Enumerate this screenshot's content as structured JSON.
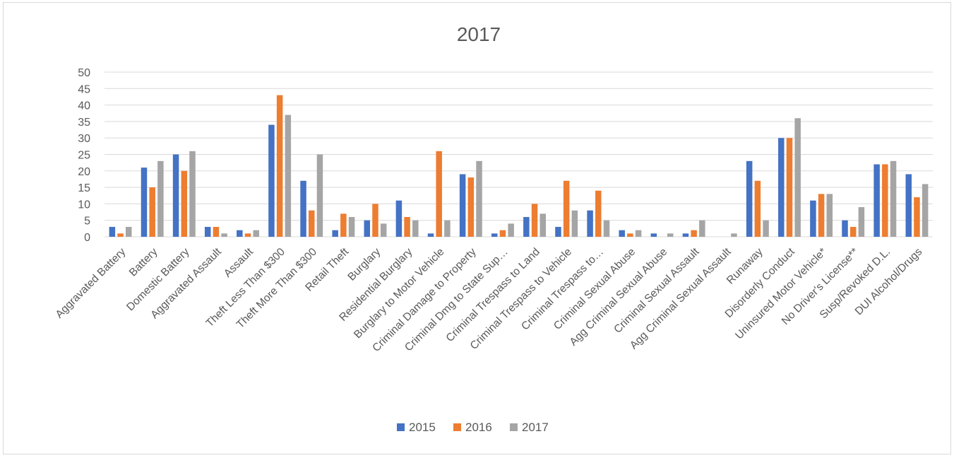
{
  "chart_data": {
    "type": "bar",
    "title": "2017",
    "xlabel": "",
    "ylabel": "",
    "ylim": [
      0,
      50
    ],
    "yticks": [
      "0",
      "5",
      "10",
      "15",
      "20",
      "25",
      "30",
      "35",
      "40",
      "45",
      "50"
    ],
    "grid": true,
    "legend_position": "bottom",
    "categories": [
      "Aggravated Battery",
      "Battery",
      "Domestic Battery",
      "Aggravated Assault",
      "Assault",
      "Theft Less Than $300",
      "Theft More Than $300",
      "Retail Theft",
      "Burglary",
      "Residential Burglary",
      "Burglary to Motor Vehicle",
      "Criminal Damage to Property",
      "Criminal Dmg to State Sup…",
      "Criminal Trespass to Land",
      "Criminal Trespass to Vehicle",
      "Criminal Trespass to…",
      "Criminal Sexual Abuse",
      "Agg Criminal Sexual Abuse",
      "Criminal Sexual Assault",
      "Agg Criminal Sexual Assault",
      "Runaway",
      "Disorderly Conduct",
      "Uninsured Motor Vehicle*",
      "No Driver's License**",
      "Susp/Revoked D.L.",
      "DUI Alcohol/Drugs"
    ],
    "series": [
      {
        "name": "2015",
        "color": "#4472c4",
        "values": [
          3,
          21,
          25,
          3,
          2,
          34,
          17,
          2,
          5,
          11,
          1,
          19,
          1,
          6,
          3,
          8,
          2,
          1,
          1,
          0,
          23,
          30,
          11,
          5,
          22,
          19
        ]
      },
      {
        "name": "2016",
        "color": "#ed7d31",
        "values": [
          1,
          15,
          20,
          3,
          1,
          43,
          8,
          7,
          10,
          6,
          26,
          18,
          2,
          10,
          17,
          14,
          1,
          0,
          2,
          0,
          17,
          30,
          13,
          3,
          22,
          12
        ]
      },
      {
        "name": "2017",
        "color": "#a5a5a5",
        "values": [
          3,
          23,
          26,
          1,
          2,
          37,
          25,
          6,
          4,
          5,
          5,
          23,
          4,
          7,
          8,
          5,
          2,
          1,
          5,
          1,
          5,
          36,
          13,
          9,
          23,
          16
        ]
      }
    ]
  }
}
